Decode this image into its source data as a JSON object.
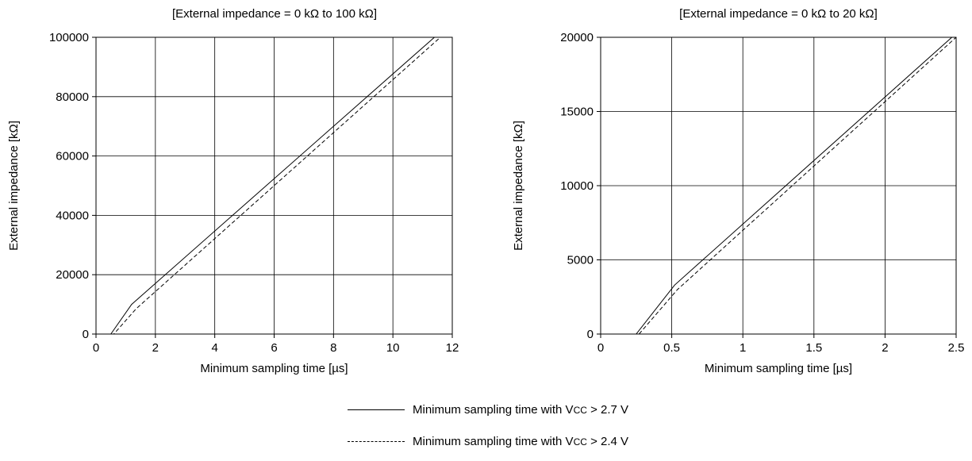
{
  "chart_data": [
    {
      "type": "line",
      "title": "[External impedance = 0 kΩ to 100 kΩ]",
      "xlabel": "Minimum sampling time [µs]",
      "ylabel": "External impedance [kΩ]",
      "xlim": [
        0,
        12
      ],
      "ylim": [
        0,
        100000
      ],
      "xticks": [
        0,
        2,
        4,
        6,
        8,
        10,
        12
      ],
      "yticks": [
        0,
        20000,
        40000,
        60000,
        80000,
        100000
      ],
      "grid": true,
      "series": [
        {
          "style": "solid",
          "x": [
            0.5,
            1.2,
            11.4
          ],
          "y": [
            0,
            10000,
            100000
          ]
        },
        {
          "style": "dashed",
          "x": [
            0.5,
            0.6,
            1.35,
            11.6
          ],
          "y": [
            0,
            0,
            8500,
            100000
          ]
        }
      ]
    },
    {
      "type": "line",
      "title": "[External impedance = 0 kΩ to 20 kΩ]",
      "xlabel": "Minimum sampling time [µs]",
      "ylabel": "External impedance [kΩ]",
      "xlim": [
        0,
        2.5
      ],
      "ylim": [
        0,
        20000
      ],
      "xticks": [
        0,
        0.5,
        1,
        1.5,
        2,
        2.5
      ],
      "yticks": [
        0,
        5000,
        10000,
        15000,
        20000
      ],
      "grid": true,
      "series": [
        {
          "style": "solid",
          "x": [
            0,
            0.25,
            0.52,
            2.47
          ],
          "y": [
            0,
            0,
            3300,
            20000
          ]
        },
        {
          "style": "dashed",
          "x": [
            0.27,
            0.54,
            2.5
          ],
          "y": [
            0,
            3000,
            20000
          ]
        }
      ]
    }
  ],
  "legend": {
    "solid": {
      "pre": "Minimum sampling time with V",
      "sub": "CC",
      "post": " > 2.7 V"
    },
    "dashed": {
      "pre": "Minimum sampling time with V",
      "sub": "CC",
      "post": " > 2.4 V"
    }
  }
}
